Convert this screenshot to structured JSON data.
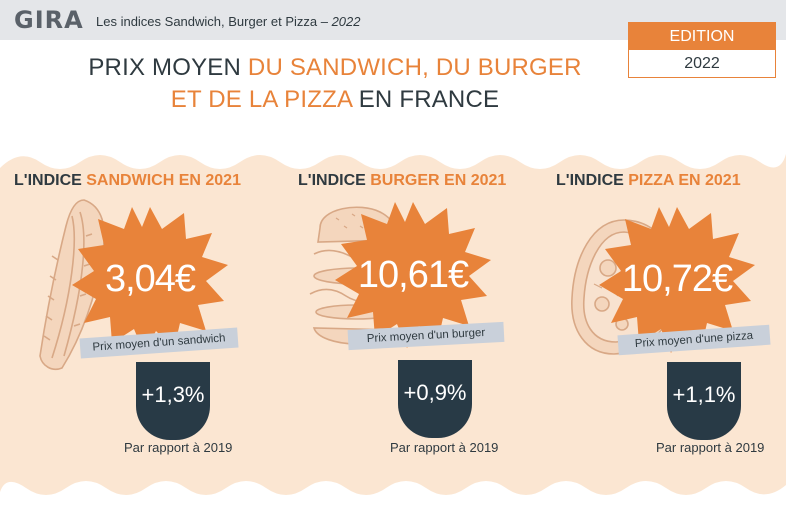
{
  "header": {
    "logo": "GIRA",
    "title_main": "Les indices Sandwich, Burger et Pizza – ",
    "title_year": "2022"
  },
  "edition": {
    "label": "EDITION",
    "year": "2022"
  },
  "headline": {
    "part1": "PRIX MOYEN ",
    "part2": "DU SANDWICH, DU BURGER",
    "part3": "ET DE LA PIZZA",
    "part4": " EN FRANCE"
  },
  "colors": {
    "accent": "#e8833a",
    "dark": "#283a46",
    "panel": "#fbe6d2",
    "tag": "#c9d0da"
  },
  "indices": [
    {
      "prefix": "L'INDICE ",
      "product": "SANDWICH",
      "suffix": " EN 2021",
      "price": "3,04€",
      "caption": "Prix moyen d'un sandwich",
      "change": "+1,3%",
      "comparison": "Par rapport à 2019",
      "icon": "sandwich-icon"
    },
    {
      "prefix": "L'INDICE ",
      "product": "BURGER",
      "suffix": " EN 2021",
      "price": "10,61€",
      "caption": "Prix moyen d'un burger",
      "change": "+0,9%",
      "comparison": "Par rapport à 2019",
      "icon": "burger-icon"
    },
    {
      "prefix": "L'INDICE ",
      "product": "PIZZA",
      "suffix": " EN 2021",
      "price": "10,72€",
      "caption": "Prix moyen d'une pizza",
      "change": "+1,1%",
      "comparison": "Par rapport à 2019",
      "icon": "pizza-icon"
    }
  ]
}
